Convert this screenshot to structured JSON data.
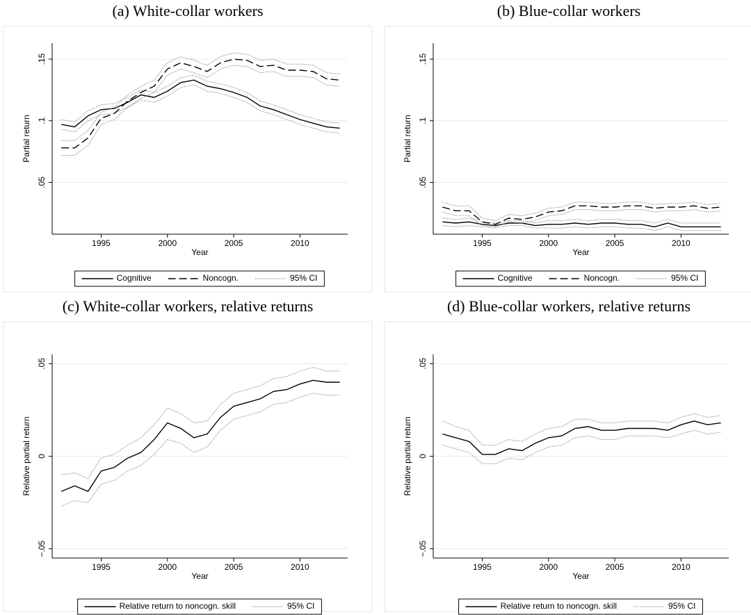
{
  "chart_data": [
    {
      "type": "line",
      "title": "(a) White-collar workers",
      "ylabel": "Partial return",
      "xlabel": "Year",
      "x": [
        1992,
        1993,
        1994,
        1995,
        1996,
        1997,
        1998,
        1999,
        2000,
        2001,
        2002,
        2003,
        2004,
        2005,
        2006,
        2007,
        2008,
        2009,
        2010,
        2011,
        2012,
        2013
      ],
      "xlim": [
        1991.3,
        2013.6
      ],
      "xticks": [
        1995,
        2000,
        2005,
        2010
      ],
      "ylim": [
        0.008,
        0.163
      ],
      "yticks": [
        {
          "value": 0.05,
          "label": ".05"
        },
        {
          "value": 0.1,
          "label": ".1"
        },
        {
          "value": 0.15,
          "label": ".15"
        }
      ],
      "grid": true,
      "ci_label": "95% CI",
      "ci_color": "#888888",
      "series": [
        {
          "name": "Cognitive",
          "color": "#000000",
          "dash": "none",
          "values": [
            0.097,
            0.095,
            0.104,
            0.109,
            0.11,
            0.115,
            0.121,
            0.119,
            0.124,
            0.131,
            0.133,
            0.128,
            0.126,
            0.123,
            0.119,
            0.112,
            0.109,
            0.105,
            0.101,
            0.098,
            0.095,
            0.094
          ],
          "lower": [
            0.093,
            0.091,
            0.1,
            0.105,
            0.106,
            0.111,
            0.117,
            0.115,
            0.12,
            0.127,
            0.129,
            0.124,
            0.122,
            0.119,
            0.115,
            0.108,
            0.105,
            0.101,
            0.097,
            0.094,
            0.091,
            0.09
          ],
          "upper": [
            0.101,
            0.099,
            0.108,
            0.113,
            0.114,
            0.119,
            0.125,
            0.123,
            0.128,
            0.135,
            0.137,
            0.132,
            0.13,
            0.127,
            0.123,
            0.116,
            0.113,
            0.109,
            0.105,
            0.102,
            0.099,
            0.098
          ]
        },
        {
          "name": "Noncogn.",
          "color": "#000000",
          "dash": "11,5",
          "values": [
            0.078,
            0.078,
            0.086,
            0.102,
            0.106,
            0.116,
            0.123,
            0.128,
            0.142,
            0.147,
            0.144,
            0.14,
            0.147,
            0.15,
            0.149,
            0.144,
            0.145,
            0.141,
            0.141,
            0.14,
            0.134,
            0.133
          ],
          "lower": [
            0.072,
            0.072,
            0.08,
            0.097,
            0.101,
            0.111,
            0.118,
            0.123,
            0.137,
            0.142,
            0.139,
            0.135,
            0.142,
            0.145,
            0.144,
            0.139,
            0.14,
            0.136,
            0.136,
            0.135,
            0.129,
            0.128
          ],
          "upper": [
            0.084,
            0.084,
            0.092,
            0.107,
            0.111,
            0.121,
            0.128,
            0.133,
            0.147,
            0.152,
            0.149,
            0.145,
            0.152,
            0.155,
            0.154,
            0.149,
            0.15,
            0.146,
            0.146,
            0.145,
            0.139,
            0.138
          ]
        }
      ]
    },
    {
      "type": "line",
      "title": "(b) Blue-collar workers",
      "ylabel": "Partial return",
      "xlabel": "Year",
      "x": [
        1992,
        1993,
        1994,
        1995,
        1996,
        1997,
        1998,
        1999,
        2000,
        2001,
        2002,
        2003,
        2004,
        2005,
        2006,
        2007,
        2008,
        2009,
        2010,
        2011,
        2012,
        2013
      ],
      "xlim": [
        1991.3,
        2013.6
      ],
      "xticks": [
        1995,
        2000,
        2005,
        2010
      ],
      "ylim": [
        0.008,
        0.163
      ],
      "yticks": [
        {
          "value": 0.05,
          "label": ".05"
        },
        {
          "value": 0.1,
          "label": ".1"
        },
        {
          "value": 0.15,
          "label": ".15"
        }
      ],
      "grid": true,
      "ci_label": "95% CI",
      "ci_color": "#888888",
      "series": [
        {
          "name": "Cognitive",
          "color": "#000000",
          "dash": "none",
          "values": [
            0.018,
            0.017,
            0.018,
            0.016,
            0.015,
            0.017,
            0.017,
            0.015,
            0.016,
            0.016,
            0.017,
            0.016,
            0.017,
            0.017,
            0.016,
            0.016,
            0.014,
            0.017,
            0.014,
            0.014,
            0.014,
            0.014
          ],
          "lower": [
            0.015,
            0.014,
            0.015,
            0.014,
            0.013,
            0.015,
            0.015,
            0.013,
            0.013,
            0.013,
            0.014,
            0.013,
            0.014,
            0.014,
            0.013,
            0.013,
            0.011,
            0.014,
            0.011,
            0.011,
            0.011,
            0.011
          ],
          "upper": [
            0.021,
            0.02,
            0.021,
            0.018,
            0.017,
            0.019,
            0.019,
            0.017,
            0.019,
            0.019,
            0.02,
            0.019,
            0.02,
            0.02,
            0.019,
            0.019,
            0.017,
            0.02,
            0.017,
            0.017,
            0.017,
            0.017
          ]
        },
        {
          "name": "Noncogn.",
          "color": "#000000",
          "dash": "11,5",
          "values": [
            0.03,
            0.027,
            0.027,
            0.018,
            0.016,
            0.021,
            0.02,
            0.022,
            0.026,
            0.027,
            0.031,
            0.031,
            0.03,
            0.03,
            0.031,
            0.031,
            0.029,
            0.03,
            0.03,
            0.031,
            0.029,
            0.03
          ],
          "lower": [
            0.026,
            0.023,
            0.023,
            0.015,
            0.014,
            0.018,
            0.017,
            0.019,
            0.023,
            0.024,
            0.028,
            0.028,
            0.027,
            0.027,
            0.028,
            0.028,
            0.026,
            0.027,
            0.027,
            0.028,
            0.026,
            0.027
          ],
          "upper": [
            0.034,
            0.031,
            0.031,
            0.021,
            0.019,
            0.024,
            0.023,
            0.025,
            0.029,
            0.03,
            0.034,
            0.034,
            0.033,
            0.033,
            0.034,
            0.034,
            0.032,
            0.033,
            0.033,
            0.034,
            0.032,
            0.033
          ]
        }
      ]
    },
    {
      "type": "line",
      "title": "(c) White-collar workers, relative returns",
      "ylabel": "Relative partial return",
      "xlabel": "Year",
      "x": [
        1992,
        1993,
        1994,
        1995,
        1996,
        1997,
        1998,
        1999,
        2000,
        2001,
        2002,
        2003,
        2004,
        2005,
        2006,
        2007,
        2008,
        2009,
        2010,
        2011,
        2012,
        2013
      ],
      "xlim": [
        1991.3,
        2013.6
      ],
      "xticks": [
        1995,
        2000,
        2005,
        2010
      ],
      "ylim": [
        -0.055,
        0.055
      ],
      "yticks": [
        {
          "value": -0.05,
          "label": "−.05"
        },
        0,
        {
          "value": 0.05,
          "label": ".05"
        }
      ],
      "grid": true,
      "ci_label": "95% CI",
      "ci_color": "#888888",
      "series": [
        {
          "name": "Relative return to noncogn. skill",
          "color": "#000000",
          "dash": "none",
          "values": [
            -0.019,
            -0.016,
            -0.019,
            -0.008,
            -0.006,
            -0.001,
            0.002,
            0.009,
            0.018,
            0.015,
            0.01,
            0.012,
            0.021,
            0.027,
            0.029,
            0.031,
            0.035,
            0.036,
            0.039,
            0.041,
            0.04,
            0.04
          ],
          "lower": [
            -0.027,
            -0.024,
            -0.025,
            -0.015,
            -0.013,
            -0.008,
            -0.005,
            0.001,
            0.009,
            0.007,
            0.002,
            0.005,
            0.014,
            0.02,
            0.022,
            0.024,
            0.028,
            0.029,
            0.032,
            0.034,
            0.033,
            0.033
          ],
          "upper": [
            -0.01,
            -0.009,
            -0.012,
            -0.001,
            0.001,
            0.006,
            0.01,
            0.017,
            0.026,
            0.023,
            0.018,
            0.019,
            0.028,
            0.034,
            0.036,
            0.038,
            0.042,
            0.043,
            0.046,
            0.048,
            0.046,
            0.046
          ]
        }
      ]
    },
    {
      "type": "line",
      "title": "(d) Blue-collar workers, relative returns",
      "ylabel": "Relative partial return",
      "xlabel": "Year",
      "x": [
        1992,
        1993,
        1994,
        1995,
        1996,
        1997,
        1998,
        1999,
        2000,
        2001,
        2002,
        2003,
        2004,
        2005,
        2006,
        2007,
        2008,
        2009,
        2010,
        2011,
        2012,
        2013
      ],
      "xlim": [
        1991.3,
        2013.6
      ],
      "xticks": [
        1995,
        2000,
        2005,
        2010
      ],
      "ylim": [
        -0.055,
        0.055
      ],
      "yticks": [
        {
          "value": -0.05,
          "label": "−.05"
        },
        0,
        {
          "value": 0.05,
          "label": ".05"
        }
      ],
      "grid": true,
      "ci_label": "95% CI",
      "ci_color": "#888888",
      "series": [
        {
          "name": "Relative return to noncogn. skill",
          "color": "#000000",
          "dash": "none",
          "values": [
            0.012,
            0.01,
            0.008,
            0.001,
            0.001,
            0.004,
            0.003,
            0.007,
            0.01,
            0.011,
            0.015,
            0.016,
            0.014,
            0.014,
            0.015,
            0.015,
            0.015,
            0.014,
            0.017,
            0.019,
            0.017,
            0.018
          ],
          "lower": [
            0.006,
            0.004,
            0.002,
            -0.004,
            -0.004,
            -0.001,
            -0.002,
            0.002,
            0.005,
            0.006,
            0.01,
            0.011,
            0.009,
            0.009,
            0.011,
            0.011,
            0.011,
            0.01,
            0.012,
            0.014,
            0.012,
            0.013
          ],
          "upper": [
            0.019,
            0.016,
            0.014,
            0.006,
            0.006,
            0.009,
            0.008,
            0.012,
            0.015,
            0.016,
            0.02,
            0.02,
            0.018,
            0.018,
            0.019,
            0.019,
            0.019,
            0.018,
            0.021,
            0.023,
            0.021,
            0.022
          ]
        }
      ]
    }
  ]
}
